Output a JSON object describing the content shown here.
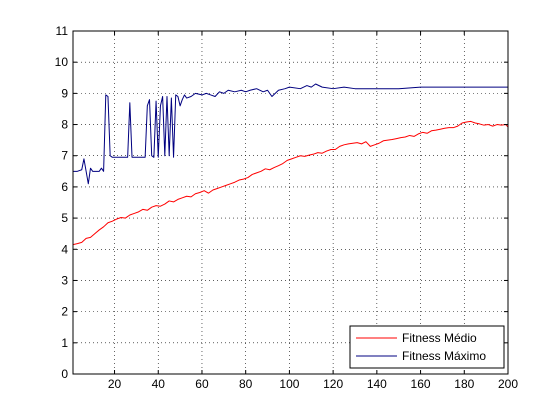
{
  "chart_data": {
    "type": "line",
    "title": "",
    "xlabel": "",
    "ylabel": "",
    "xlim": [
      1,
      200
    ],
    "ylim": [
      0,
      11
    ],
    "xticks": [
      20,
      40,
      60,
      80,
      100,
      120,
      140,
      160,
      180,
      200
    ],
    "yticks": [
      0,
      1,
      2,
      3,
      4,
      5,
      6,
      7,
      8,
      9,
      10,
      11
    ],
    "grid": true,
    "legend_position": "bottom-right",
    "series": [
      {
        "name": "Fitness Médio",
        "color": "#ff0000",
        "x": [
          1,
          3,
          5,
          7,
          9,
          11,
          13,
          15,
          17,
          19,
          21,
          23,
          25,
          27,
          29,
          31,
          33,
          35,
          37,
          39,
          41,
          43,
          45,
          47,
          49,
          51,
          53,
          55,
          57,
          59,
          61,
          63,
          65,
          67,
          69,
          71,
          73,
          75,
          77,
          79,
          81,
          83,
          85,
          87,
          89,
          91,
          93,
          95,
          97,
          99,
          101,
          103,
          105,
          107,
          109,
          111,
          113,
          115,
          117,
          119,
          121,
          123,
          125,
          127,
          129,
          131,
          133,
          135,
          137,
          139,
          141,
          143,
          145,
          147,
          149,
          151,
          153,
          155,
          157,
          159,
          161,
          163,
          165,
          167,
          169,
          171,
          173,
          175,
          177,
          179,
          181,
          183,
          185,
          187,
          189,
          191,
          193,
          195,
          197,
          199,
          200
        ],
        "y": [
          4.15,
          4.18,
          4.22,
          4.35,
          4.38,
          4.5,
          4.62,
          4.72,
          4.85,
          4.9,
          4.97,
          5.02,
          5.0,
          5.1,
          5.15,
          5.2,
          5.28,
          5.25,
          5.35,
          5.4,
          5.38,
          5.45,
          5.55,
          5.52,
          5.6,
          5.65,
          5.7,
          5.68,
          5.78,
          5.82,
          5.88,
          5.8,
          5.9,
          5.95,
          6.0,
          6.05,
          6.1,
          6.15,
          6.22,
          6.25,
          6.3,
          6.4,
          6.45,
          6.5,
          6.58,
          6.55,
          6.62,
          6.68,
          6.75,
          6.85,
          6.9,
          6.95,
          7.0,
          6.98,
          7.02,
          7.05,
          7.1,
          7.08,
          7.15,
          7.2,
          7.2,
          7.3,
          7.35,
          7.38,
          7.4,
          7.42,
          7.38,
          7.45,
          7.3,
          7.35,
          7.4,
          7.48,
          7.5,
          7.52,
          7.55,
          7.58,
          7.6,
          7.65,
          7.62,
          7.7,
          7.75,
          7.72,
          7.8,
          7.82,
          7.85,
          7.88,
          7.9,
          7.9,
          7.95,
          8.05,
          8.08,
          8.1,
          8.05,
          8.02,
          7.98,
          8.0,
          7.95,
          8.0,
          7.98,
          8.0,
          7.92
        ]
      },
      {
        "name": "Fitness Máximo",
        "color": "#000080",
        "x": [
          1,
          3,
          5,
          6,
          7,
          8,
          9,
          10,
          11,
          12,
          13,
          14,
          15,
          16,
          17,
          18,
          19,
          20,
          21,
          22,
          24,
          26,
          27,
          28,
          29,
          30,
          32,
          34,
          35,
          36,
          37,
          38,
          39,
          40,
          41,
          42,
          43,
          44,
          45,
          46,
          47,
          48,
          49,
          50,
          51,
          52,
          53,
          55,
          57,
          60,
          62,
          64,
          66,
          68,
          70,
          72,
          75,
          78,
          80,
          82,
          85,
          88,
          90,
          92,
          95,
          98,
          100,
          105,
          108,
          110,
          112,
          115,
          120,
          125,
          130,
          140,
          150,
          160,
          170,
          180,
          185,
          190,
          195,
          200
        ],
        "y": [
          6.5,
          6.5,
          6.55,
          6.9,
          6.5,
          6.1,
          6.6,
          6.5,
          6.5,
          6.5,
          6.5,
          6.6,
          6.5,
          8.95,
          8.9,
          7.0,
          6.95,
          6.95,
          6.95,
          6.95,
          6.95,
          6.95,
          8.7,
          6.95,
          6.95,
          6.95,
          6.95,
          6.95,
          8.6,
          8.8,
          7.0,
          6.95,
          8.75,
          6.95,
          8.6,
          8.9,
          7.0,
          8.9,
          7.0,
          8.85,
          6.95,
          8.95,
          8.9,
          8.6,
          8.8,
          8.95,
          8.85,
          8.9,
          9.0,
          8.95,
          9.0,
          8.95,
          8.9,
          9.05,
          9.0,
          9.1,
          9.05,
          9.1,
          9.05,
          9.1,
          9.15,
          9.05,
          9.1,
          8.9,
          9.1,
          9.15,
          9.2,
          9.15,
          9.25,
          9.2,
          9.3,
          9.2,
          9.15,
          9.2,
          9.15,
          9.15,
          9.15,
          9.2,
          9.2,
          9.2,
          9.2,
          9.2,
          9.2,
          9.2
        ]
      }
    ]
  }
}
